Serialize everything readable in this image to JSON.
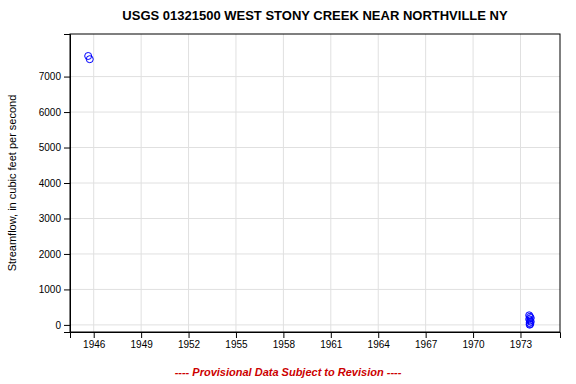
{
  "chart_data": {
    "type": "scatter",
    "title": "USGS 01321500 WEST STONY CREEK NEAR NORTHVILLE NY",
    "y_label": "Streamflow, in cubic feet per second",
    "x": [
      1945.65,
      1945.75,
      1973.55,
      1973.6,
      1973.65,
      1973.55,
      1973.6,
      1973.65,
      1973.58,
      1973.62,
      1973.58
    ],
    "values": [
      7580,
      7490,
      270,
      230,
      195,
      160,
      125,
      90,
      55,
      25,
      5
    ],
    "color": "#0000ff",
    "marker": "open-circle",
    "xlim": [
      1944.5,
      1975.5
    ],
    "ylim": [
      -200,
      8200
    ],
    "xticks": [
      1946,
      1949,
      1952,
      1955,
      1958,
      1961,
      1964,
      1967,
      1970,
      1973
    ],
    "yticks": [
      0,
      1000,
      2000,
      3000,
      4000,
      5000,
      6000,
      7000
    ],
    "grid": true,
    "annotations": [
      "---- Provisional Data Subject to Revision ----"
    ]
  }
}
